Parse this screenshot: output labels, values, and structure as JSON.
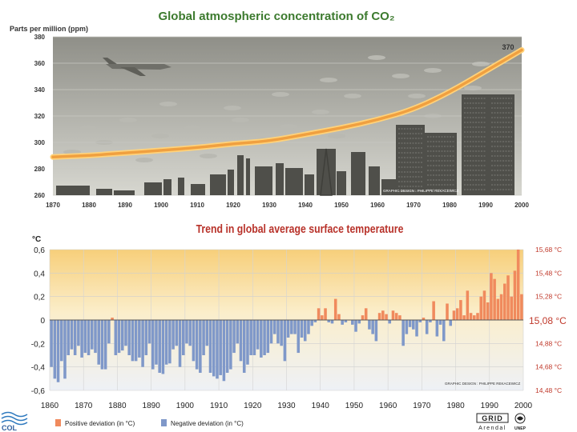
{
  "colors": {
    "co2_line": "#f0a040",
    "co2_line_glow": "#ffd27a",
    "co2_sky_top": "#8f8f88",
    "co2_sky_bottom": "#d7d7d0",
    "temp_positive": "#f08a5d",
    "temp_negative": "#7f98c9",
    "temp_bg_top": "#f7cf7a",
    "temp_bg_bottom": "#eef1f6",
    "title_green": "#3c7a2e",
    "title_red": "#b8322a",
    "right_labels": "#c0392b"
  },
  "chart_data": [
    {
      "type": "line",
      "title": "Global atmospheric concentration of CO₂",
      "ylabel": "Parts per million (ppm)",
      "xlim": [
        1870,
        2000
      ],
      "ylim": [
        260,
        380
      ],
      "x_ticks": [
        "1870",
        "1880",
        "1890",
        "1900",
        "1910",
        "1920",
        "1930",
        "1940",
        "1950",
        "1960",
        "1970",
        "1980",
        "1990",
        "2000"
      ],
      "y_ticks": [
        "260",
        "280",
        "300",
        "320",
        "340",
        "360",
        "380"
      ],
      "annotation": "370",
      "credit": "GRAPHIC DESIGN : PHILIPPE REKACEWICZ",
      "x": [
        1870,
        1880,
        1890,
        1900,
        1910,
        1920,
        1930,
        1940,
        1950,
        1960,
        1970,
        1980,
        1990,
        2000
      ],
      "values": [
        289,
        290,
        292,
        294,
        296,
        299,
        301,
        306,
        311,
        317,
        325,
        338,
        354,
        370
      ]
    },
    {
      "type": "bar",
      "title": "Trend in global average surface temperature",
      "ylabel": "°C",
      "ylim": [
        -0.6,
        0.6
      ],
      "xlim": [
        1860,
        2000
      ],
      "x_ticks": [
        "1860",
        "1870",
        "1880",
        "1890",
        "1900",
        "1910",
        "1920",
        "1930",
        "1940",
        "1950",
        "1960",
        "1970",
        "1980",
        "1990",
        "2000"
      ],
      "y_ticks": [
        "0,6",
        "0,4",
        "0,2",
        "0",
        "-0,2",
        "-0,4",
        "-0,6"
      ],
      "right_ticks": [
        "15,68 °C",
        "15,48 °C",
        "15,28 °C",
        "15,08 °C",
        "14,88 °C",
        "14,68 °C",
        "14,48 °C"
      ],
      "credit": "GRAPHIC DESIGN : PHILIPPE REKACEWICZ",
      "legend": [
        "Positive deviation (in °C)",
        "Negative deviation (in °C)"
      ],
      "years": [
        1860,
        1861,
        1862,
        1863,
        1864,
        1865,
        1866,
        1867,
        1868,
        1869,
        1870,
        1871,
        1872,
        1873,
        1874,
        1875,
        1876,
        1877,
        1878,
        1879,
        1880,
        1881,
        1882,
        1883,
        1884,
        1885,
        1886,
        1887,
        1888,
        1889,
        1890,
        1891,
        1892,
        1893,
        1894,
        1895,
        1896,
        1897,
        1898,
        1899,
        1900,
        1901,
        1902,
        1903,
        1904,
        1905,
        1906,
        1907,
        1908,
        1909,
        1910,
        1911,
        1912,
        1913,
        1914,
        1915,
        1916,
        1917,
        1918,
        1919,
        1920,
        1921,
        1922,
        1923,
        1924,
        1925,
        1926,
        1927,
        1928,
        1929,
        1930,
        1931,
        1932,
        1933,
        1934,
        1935,
        1936,
        1937,
        1938,
        1939,
        1940,
        1941,
        1942,
        1943,
        1944,
        1945,
        1946,
        1947,
        1948,
        1949,
        1950,
        1951,
        1952,
        1953,
        1954,
        1955,
        1956,
        1957,
        1958,
        1959,
        1960,
        1961,
        1962,
        1963,
        1964,
        1965,
        1966,
        1967,
        1968,
        1969,
        1970,
        1971,
        1972,
        1973,
        1974,
        1975,
        1976,
        1977,
        1978,
        1979,
        1980,
        1981,
        1982,
        1983,
        1984,
        1985,
        1986,
        1987,
        1988,
        1989,
        1990,
        1991,
        1992,
        1993,
        1994,
        1995,
        1996,
        1997,
        1998,
        1999
      ],
      "values": [
        -0.4,
        -0.5,
        -0.53,
        -0.35,
        -0.5,
        -0.3,
        -0.25,
        -0.3,
        -0.22,
        -0.32,
        -0.28,
        -0.3,
        -0.25,
        -0.28,
        -0.38,
        -0.42,
        -0.42,
        -0.2,
        0.02,
        -0.3,
        -0.28,
        -0.26,
        -0.22,
        -0.3,
        -0.35,
        -0.35,
        -0.32,
        -0.4,
        -0.3,
        -0.2,
        -0.42,
        -0.38,
        -0.45,
        -0.46,
        -0.38,
        -0.37,
        -0.25,
        -0.22,
        -0.4,
        -0.3,
        -0.2,
        -0.22,
        -0.35,
        -0.42,
        -0.45,
        -0.3,
        -0.22,
        -0.45,
        -0.48,
        -0.5,
        -0.47,
        -0.52,
        -0.45,
        -0.42,
        -0.28,
        -0.2,
        -0.35,
        -0.45,
        -0.38,
        -0.3,
        -0.3,
        -0.25,
        -0.32,
        -0.3,
        -0.28,
        -0.2,
        -0.12,
        -0.2,
        -0.22,
        -0.35,
        -0.15,
        -0.12,
        -0.12,
        -0.28,
        -0.15,
        -0.18,
        -0.12,
        -0.05,
        -0.02,
        0.1,
        0.04,
        0.1,
        -0.02,
        -0.03,
        0.18,
        0.05,
        -0.04,
        -0.02,
        0.0,
        -0.04,
        -0.1,
        -0.03,
        0.04,
        0.1,
        -0.08,
        -0.12,
        -0.18,
        0.06,
        0.08,
        0.05,
        -0.03,
        0.08,
        0.06,
        0.04,
        -0.22,
        -0.12,
        -0.06,
        -0.08,
        -0.14,
        -0.02,
        0.02,
        -0.12,
        -0.02,
        0.16,
        -0.14,
        -0.04,
        -0.18,
        0.14,
        -0.05,
        0.08,
        0.1,
        0.17,
        0.04,
        0.25,
        0.06,
        0.04,
        0.06,
        0.2,
        0.25,
        0.15,
        0.4,
        0.35,
        0.18,
        0.22,
        0.31,
        0.38,
        0.2,
        0.42,
        0.6,
        0.22
      ]
    }
  ],
  "footer": {
    "left_label": "COL",
    "logo_grid": "GRID",
    "logo_arendal": "Arendal",
    "logo_unep": "UNEP"
  }
}
